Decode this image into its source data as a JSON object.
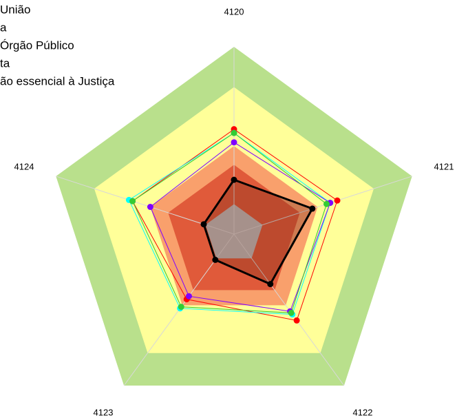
{
  "chart_data": {
    "type": "radar",
    "categories": [
      "4120",
      "4121",
      "4122",
      "4123",
      "4124"
    ],
    "rlim": [
      0,
      100
    ],
    "series": [
      {
        "name": "União",
        "color": "#ff0000",
        "values": [
          56,
          58,
          57,
          43,
          57
        ]
      },
      {
        "name": "a",
        "color": "#00ffff",
        "values": [
          54,
          54,
          53,
          49,
          59
        ]
      },
      {
        "name": "Órgão Público",
        "color": "#8000ff",
        "values": [
          49,
          54,
          51,
          41,
          47
        ]
      },
      {
        "name": "ta",
        "color": "#33cc33",
        "values": [
          54,
          52,
          52,
          48,
          57
        ]
      },
      {
        "name": "ão essencial à Justiça",
        "color": "#000000",
        "values": [
          29,
          44,
          33,
          17,
          17
        ]
      }
    ]
  }
}
